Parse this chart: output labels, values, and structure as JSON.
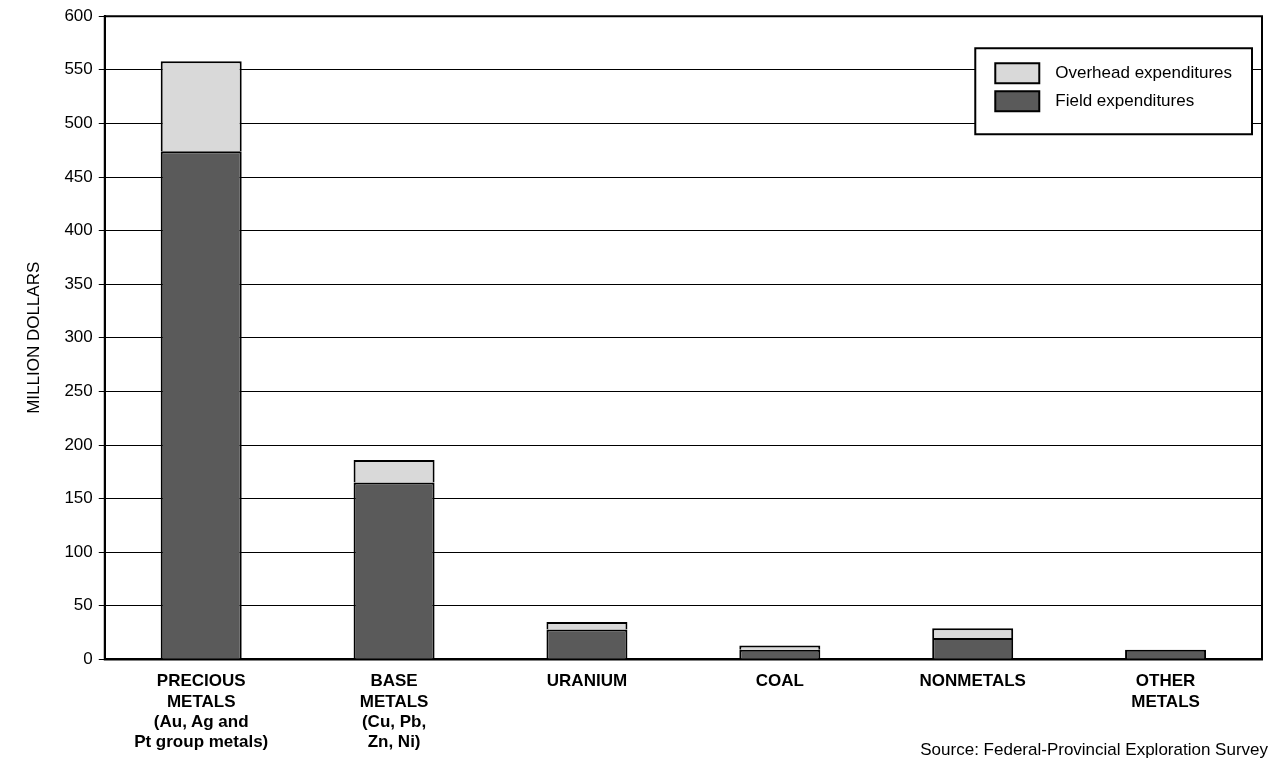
{
  "chart_data": {
    "type": "bar",
    "ylabel": "MILLION DOLLARS",
    "categories": [
      "PRECIOUS\nMETALS\n(Au, Ag and\nPt group metals)",
      "BASE\nMETALS\n(Cu, Pb,\nZn, Ni)",
      "URANIUM",
      "COAL",
      "NONMETALS",
      "OTHER\nMETALS"
    ],
    "series": [
      {
        "name": "Field expenditures",
        "color": "#5a5a5a",
        "values": [
          474,
          165,
          28,
          9,
          20,
          9
        ]
      },
      {
        "name": "Overhead expenditures",
        "color": "#d9d9d9",
        "values": [
          84,
          21,
          7,
          4,
          9,
          0
        ]
      }
    ],
    "stacked": true,
    "ylim": [
      0,
      600
    ],
    "yticks": [
      0,
      50,
      100,
      150,
      200,
      250,
      300,
      350,
      400,
      450,
      500,
      550,
      600
    ],
    "grid": "y",
    "legend": "top right",
    "annotations": [
      "Source:  Federal-Provincial Exploration Survey"
    ]
  }
}
